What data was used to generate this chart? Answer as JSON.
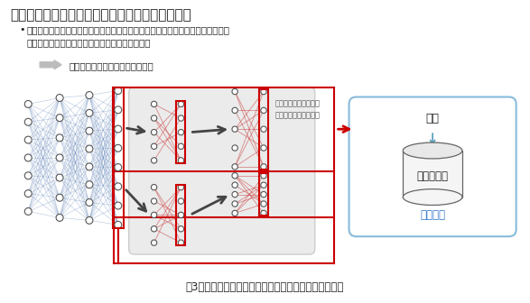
{
  "title": "ニューラルネットワークのデータ拡張手法の活用",
  "bullet": "ニューラルネットワークのノード間の接続重みをランダムにゼロ化することで、\n様々な中間出力を模擬的に生成。話者登録に利用",
  "arrow_text": "少量の発話での話者の登録が可能",
  "caption": "図3：ニューラルネットワークのデータ拡張手法の活用",
  "callout_text": "ノード間の接続重みを\nランダムにゼロにする",
  "speaker_label": "話者",
  "model_label": "話者モデル",
  "register_label": "話者登録",
  "bg_color": "#ffffff",
  "red_color": "#cc0000",
  "blue_conn": "#6688bb",
  "red_conn": "#cc4444",
  "dark_gray": "#444444",
  "mid_gray": "#888888",
  "light_gray": "#ebebeb",
  "node_edge": "#555555",
  "text_dark": "#222222",
  "blue_box": "#88bbdd",
  "blue_text": "#3377cc",
  "blue_arrow": "#5599bb"
}
